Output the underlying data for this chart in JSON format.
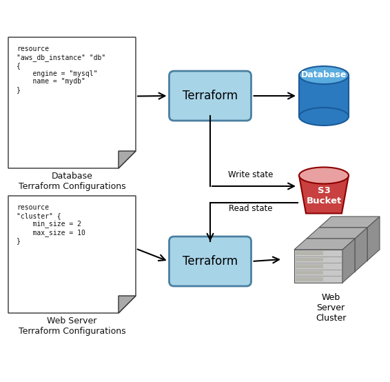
{
  "bg_color": "#ffffff",
  "doc1_text": "resource\n\"aws_db_instance\" \"db\"\n{\n    engine = \"mysql\"\n    name = \"mydb\"\n}",
  "doc1_label": "Database\nTerraform Configurations",
  "doc2_text": "resource\n\"cluster\" {\n    min_size = 2\n    max_size = 10\n}",
  "doc2_label": "Web Server\nTerraform Configurations",
  "terraform1_label": "Terraform",
  "terraform2_label": "Terraform",
  "db_label": "Database",
  "s3_label": "S3\nBucket",
  "ws_label": "Web\nServer\nCluster",
  "write_state_label": "Write state",
  "read_state_label": "Read state",
  "terraform_box_color": "#a8d4e8",
  "terraform_box_edge": "#4a7fa0",
  "doc_bg": "#ffffff",
  "doc_edge": "#333333",
  "db_top_color": "#5aabde",
  "db_body_color": "#2b7abf",
  "db_edge_color": "#1a5a9a",
  "s3_top_color": "#e8a0a0",
  "s3_body_color": "#c84040",
  "s3_edge_color": "#8b0000",
  "server_face_color": "#c8c8c8",
  "server_side_color": "#909090",
  "server_top_color": "#b0b0b0",
  "server_edge_color": "#555555",
  "arrow_color": "#000000",
  "fold_color": "#aaaaaa"
}
